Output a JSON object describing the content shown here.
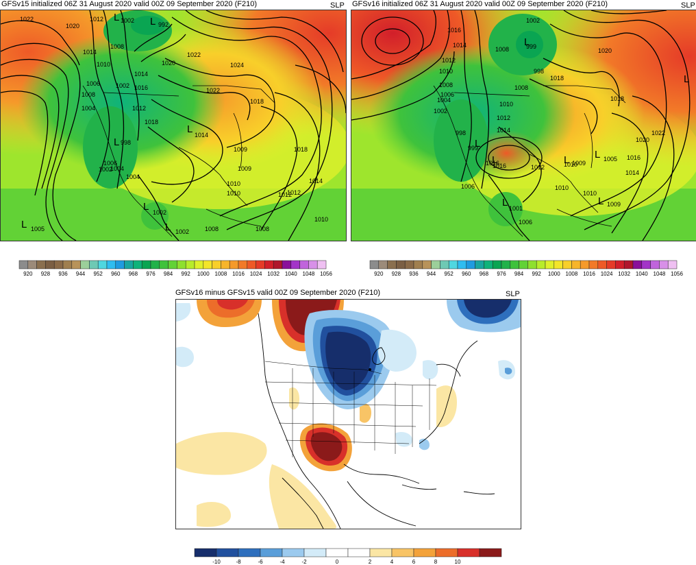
{
  "panels": {
    "gfs15": {
      "title": "GFSv15 initialized 06Z 31 August 2020 valid 00Z 09 September 2020 (F210)",
      "field": "SLP",
      "contour_labels": [
        "1022",
        "1020",
        "1014",
        "1012",
        "1010",
        "1008",
        "1008",
        "1006",
        "1004",
        "1004",
        "1002",
        "1002",
        "1004",
        "1006",
        "998",
        "1012",
        "1014",
        "1016",
        "1018",
        "1020",
        "1022",
        "1024",
        "1022",
        "1018",
        "1014",
        "1014",
        "1012",
        "1010",
        "1009",
        "1009",
        "1010",
        "1008",
        "1008",
        "1002",
        "1002",
        "1005",
        "992",
        "1002",
        "1018",
        "1012",
        "1010"
      ],
      "highs_lows": [
        "L",
        "L",
        "L",
        "L",
        "L",
        "L",
        "L"
      ],
      "low_values": [
        "1005",
        "998",
        "1014",
        "1002",
        "992",
        "1002",
        "1002"
      ]
    },
    "gfs16": {
      "title": "GFSv16 initialized 06Z 31 August 2020 valid 00Z 09 September 2020 (F210)",
      "field": "SLP",
      "contour_labels": [
        "1016",
        "1014",
        "1012",
        "1010",
        "1008",
        "1008",
        "1006",
        "1004",
        "1002",
        "1002",
        "998",
        "999",
        "1010",
        "1012",
        "1014",
        "1016",
        "1018",
        "1020",
        "1022",
        "1020",
        "1016",
        "1014",
        "1012",
        "1010",
        "1010",
        "1009",
        "1009",
        "1005",
        "1006",
        "1006",
        "1001",
        "1008",
        "1018",
        "1016",
        "1010",
        "999",
        "998"
      ],
      "highs_lows": [
        "L",
        "L",
        "L",
        "L",
        "L",
        "L",
        "L",
        "L"
      ],
      "low_values": [
        "999",
        "1001",
        "1016",
        "1005",
        "1009",
        "1002",
        "1012",
        "1010"
      ]
    },
    "diff": {
      "title": "GFSv16 minus GFSv15 valid 00Z 09 September 2020 (F210)",
      "field": "SLP"
    }
  },
  "colorbar_slp": {
    "ticks": [
      "920",
      "928",
      "936",
      "944",
      "952",
      "960",
      "968",
      "976",
      "984",
      "992",
      "1000",
      "1008",
      "1016",
      "1024",
      "1032",
      "1040",
      "1048",
      "1056"
    ],
    "colors": [
      "#8c8c8c",
      "#9c8b7a",
      "#8a6f4f",
      "#7b5f44",
      "#8a6a48",
      "#a07f4f",
      "#b8935a",
      "#9ccf9a",
      "#6ec9b4",
      "#4fd7e0",
      "#2fbdf0",
      "#1f9be0",
      "#19a6a0",
      "#0fb37a",
      "#0aa552",
      "#22b24a",
      "#3fc23c",
      "#62d236",
      "#8ee02e",
      "#b8ec2a",
      "#dff02b",
      "#f3e52a",
      "#f8cf2a",
      "#f7b52a",
      "#f59a2a",
      "#f27a28",
      "#ee5a27",
      "#e53b28",
      "#d21f2a",
      "#b0162c",
      "#8a0f9a",
      "#a334c8",
      "#c064dc",
      "#d890e8",
      "#efc0f2"
    ]
  },
  "colorbar_diff": {
    "ticks": [
      "-10",
      "-8",
      "-6",
      "-4",
      "-2",
      "0",
      "2",
      "4",
      "6",
      "8",
      "10"
    ],
    "colors": [
      "#162e6b",
      "#21509e",
      "#2e6fbd",
      "#5a9ed9",
      "#9bcaee",
      "#d3ebf8",
      "#ffffff",
      "#ffffff",
      "#fbe6a4",
      "#f8c466",
      "#f3a23a",
      "#ec6d2a",
      "#d8302a",
      "#8b1a1a"
    ]
  }
}
